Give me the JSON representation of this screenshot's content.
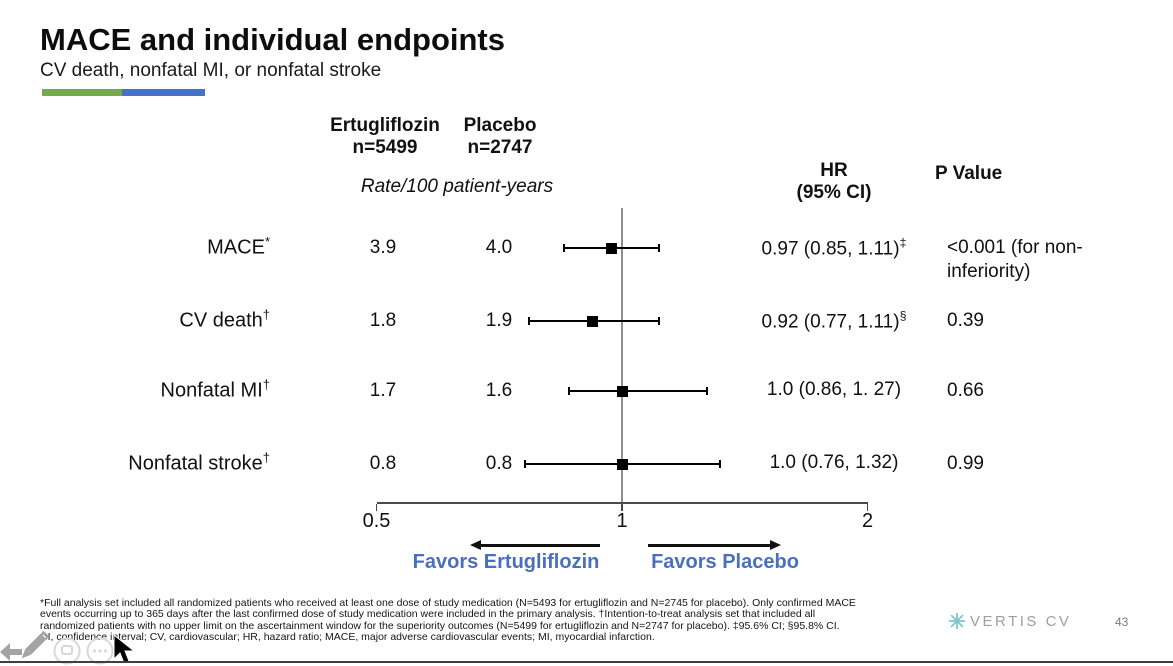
{
  "slide": {
    "title": "MACE and individual endpoints",
    "subtitle": "CV death, nonfatal MI, or nonfatal stroke",
    "accent_colors": {
      "green": "#76a94e",
      "blue": "#4472c4"
    },
    "logo_text": "VERTIS CV",
    "page_number": "43"
  },
  "table": {
    "col1_header": "Ertugliflozin",
    "col1_n": "n=5499",
    "col2_header": "Placebo",
    "col2_n": "n=2747",
    "rate_caption": "Rate/100 patient-years",
    "hr_header_line1": "HR",
    "hr_header_line2": "(95% CI)",
    "p_header": "P Value"
  },
  "chart_data": {
    "type": "forest",
    "x_axis": {
      "scale": "log",
      "range": [
        0.5,
        2
      ],
      "ticks": [
        0.5,
        1,
        2
      ],
      "tick_labels": [
        "0.5",
        "1",
        "2"
      ],
      "reference_line": 1
    },
    "favors_left": "Favors Ertugliflozin",
    "favors_right": "Favors Placebo",
    "favors_color": "#4a6fbd",
    "rows": [
      {
        "label": "MACE",
        "label_sup": "*",
        "rate_ertugliflozin": "3.9",
        "rate_placebo": "4.0",
        "hr": 0.97,
        "ci_low": 0.85,
        "ci_high": 1.11,
        "hr_text": "0.97 (0.85, 1.11)",
        "hr_sup": "‡",
        "p_value": "<0.001 (for non-inferiority)"
      },
      {
        "label": "CV death",
        "label_sup": "†",
        "rate_ertugliflozin": "1.8",
        "rate_placebo": "1.9",
        "hr": 0.92,
        "ci_low": 0.77,
        "ci_high": 1.11,
        "hr_text": "0.92 (0.77, 1.11)",
        "hr_sup": "§",
        "p_value": "0.39"
      },
      {
        "label": "Nonfatal MI",
        "label_sup": "†",
        "rate_ertugliflozin": "1.7",
        "rate_placebo": "1.6",
        "hr": 1.0,
        "ci_low": 0.86,
        "ci_high": 1.27,
        "hr_text": "1.0 (0.86, 1. 27)",
        "hr_sup": "",
        "p_value": "0.66"
      },
      {
        "label": "Nonfatal stroke",
        "label_sup": "†",
        "rate_ertugliflozin": "0.8",
        "rate_placebo": "0.8",
        "hr": 1.0,
        "ci_low": 0.76,
        "ci_high": 1.32,
        "hr_text": "1.0 (0.76, 1.32)",
        "hr_sup": "",
        "p_value": "0.99"
      }
    ]
  },
  "footnotes": [
    "*Full analysis set included all randomized patients who received at least one dose of study medication (N=5493 for ertugliflozin and N=2745 for placebo). Only confirmed MACE",
    "events occurring up to 365 days after the last confirmed  dose of study medication were included in the primary analysis. †Intention-to-treat analysis set that included all",
    "randomized patients with no upper limit on the ascertainment window for the superiority outcomes (N=5499 for ertugliflozin and N=2747 for placebo). ‡95.6% CI; §95.8% CI.",
    "CI, confidence interval; CV, cardiovascular; HR, hazard ratio; MACE, major adverse cardiovascular events; MI, myocardial infarction."
  ],
  "overlay": {
    "icons": [
      "back-arrow-icon",
      "pencil-icon",
      "annotation-tool-icon",
      "more-options-icon",
      "mouse-cursor-icon",
      "vertis-snowflake-icon"
    ]
  }
}
